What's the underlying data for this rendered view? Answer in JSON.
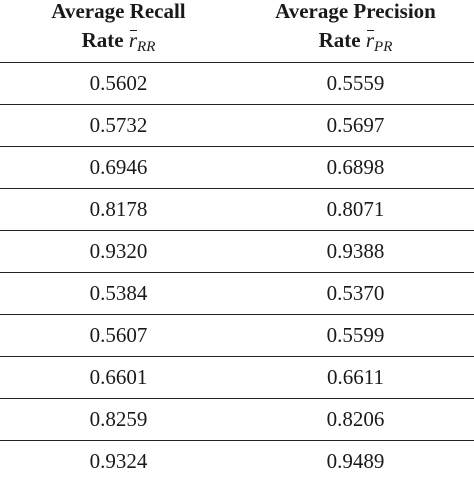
{
  "table": {
    "headers": [
      {
        "line1": "Average Recall",
        "line2_prefix": "Rate ",
        "symbol": "r",
        "subscript": "RR"
      },
      {
        "line1": "Average Precision",
        "line2_prefix": "Rate ",
        "symbol": "r",
        "subscript": "PR"
      }
    ],
    "rows": [
      [
        "0.5602",
        "0.5559"
      ],
      [
        "0.5732",
        "0.5697"
      ],
      [
        "0.6946",
        "0.6898"
      ],
      [
        "0.8178",
        "0.8071"
      ],
      [
        "0.9320",
        "0.9388"
      ],
      [
        "0.5384",
        "0.5370"
      ],
      [
        "0.5607",
        "0.5599"
      ],
      [
        "0.6601",
        "0.6611"
      ],
      [
        "0.8259",
        "0.8206"
      ],
      [
        "0.9324",
        "0.9489"
      ]
    ]
  }
}
